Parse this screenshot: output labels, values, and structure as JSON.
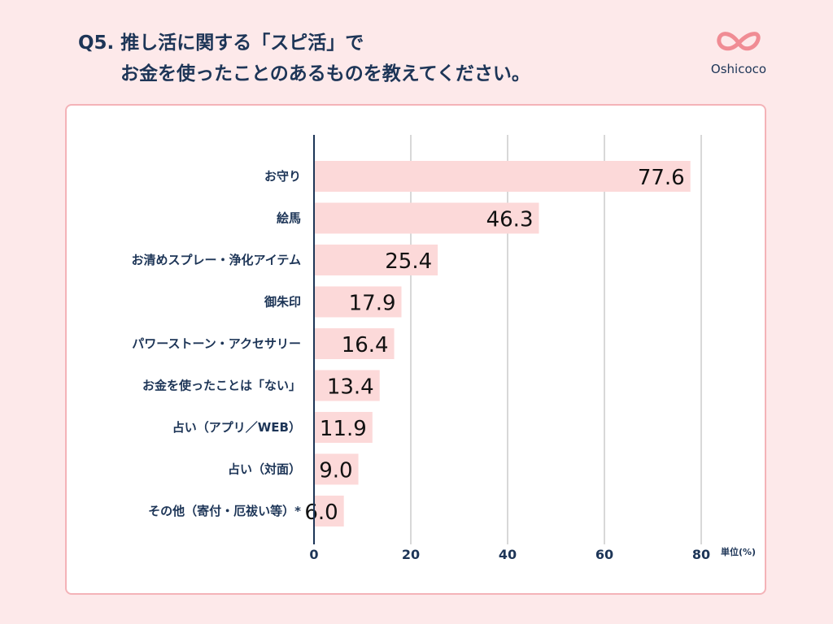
{
  "header": {
    "title_line1": "Q5. 推し活に関する「スピ活」で",
    "title_line2": "お金を使ったことのあるものを教えてください。"
  },
  "logo": {
    "brand": "Oshicoco",
    "icon": "double-heart-infinity-icon"
  },
  "colors": {
    "bar": "#fcd9d9",
    "axis": "#1d3557",
    "grid": "#cccccc",
    "accent": "#f08c94"
  },
  "chart_data": {
    "type": "bar",
    "orientation": "horizontal",
    "categories": [
      "お守り",
      "絵馬",
      "お清めスプレー・浄化アイテム",
      "御朱印",
      "パワーストーン・アクセサリー",
      "お金を使ったことは「ない」",
      "占い（アプリ／WEB）",
      "占い（対面）",
      "その他（寄付・厄祓い等）*"
    ],
    "values": [
      77.6,
      46.3,
      25.4,
      17.9,
      16.4,
      13.4,
      11.9,
      9.0,
      6.0
    ],
    "value_labels": [
      "77.6",
      "46.3",
      "25.4",
      "17.9",
      "16.4",
      "13.4",
      "11.9",
      "9.0",
      "6.0"
    ],
    "xlim": [
      0,
      80
    ],
    "xticks": [
      0,
      20,
      40,
      60,
      80
    ],
    "xtick_labels": [
      "0",
      "20",
      "40",
      "60",
      "80"
    ],
    "unit_label": "単位(%)",
    "grid": true
  }
}
